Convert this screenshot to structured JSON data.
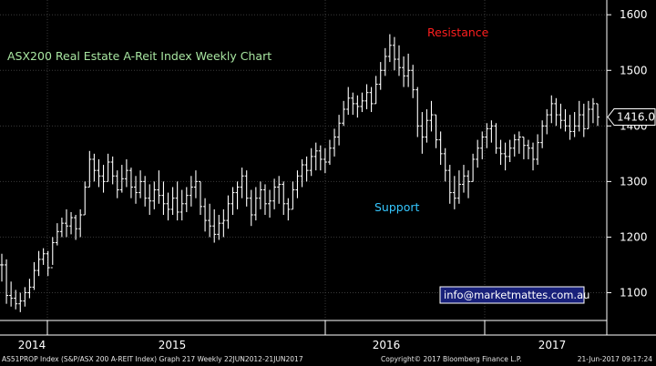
{
  "colors": {
    "background": "#000000",
    "grid": "#3a3a3a",
    "bars": "#ffffff",
    "title": "#a8e6a1",
    "resistance": "#ff1e1e",
    "support": "#35c7ff",
    "last_price_box_border": "#ffffff",
    "email_box_bg": "#18207a"
  },
  "chart_data": {
    "type": "ohlc",
    "title": "ASX200 Real Estate A-Reit Index Weekly Chart",
    "annotations": {
      "resistance": "Resistance",
      "support": "Support",
      "email": "info@marketmattes.com.au"
    },
    "last_price_label": "1416.0",
    "last_price": 1416.0,
    "ylim": [
      1050,
      1620
    ],
    "yticks": [
      1100,
      1200,
      1300,
      1400,
      1500,
      1600
    ],
    "xlabels": [
      "2014",
      "2015",
      "2016",
      "2017"
    ],
    "x_range": [
      "2014-01-20",
      "2017-06-21"
    ],
    "grid": true,
    "bars": [
      {
        "h": 1170,
        "l": 1120,
        "c": 1150
      },
      {
        "h": 1160,
        "l": 1080,
        "c": 1095
      },
      {
        "h": 1120,
        "l": 1075,
        "c": 1090
      },
      {
        "h": 1105,
        "l": 1070,
        "c": 1080
      },
      {
        "h": 1100,
        "l": 1065,
        "c": 1085
      },
      {
        "h": 1110,
        "l": 1075,
        "c": 1100
      },
      {
        "h": 1125,
        "l": 1090,
        "c": 1110
      },
      {
        "h": 1155,
        "l": 1105,
        "c": 1140
      },
      {
        "h": 1175,
        "l": 1130,
        "c": 1160
      },
      {
        "h": 1180,
        "l": 1150,
        "c": 1170
      },
      {
        "h": 1175,
        "l": 1130,
        "c": 1145
      },
      {
        "h": 1200,
        "l": 1150,
        "c": 1190
      },
      {
        "h": 1225,
        "l": 1185,
        "c": 1210
      },
      {
        "h": 1235,
        "l": 1200,
        "c": 1225
      },
      {
        "h": 1250,
        "l": 1200,
        "c": 1220
      },
      {
        "h": 1245,
        "l": 1205,
        "c": 1235
      },
      {
        "h": 1240,
        "l": 1195,
        "c": 1215
      },
      {
        "h": 1250,
        "l": 1200,
        "c": 1240
      },
      {
        "h": 1300,
        "l": 1240,
        "c": 1290
      },
      {
        "h": 1355,
        "l": 1290,
        "c": 1340
      },
      {
        "h": 1350,
        "l": 1300,
        "c": 1320
      },
      {
        "h": 1340,
        "l": 1290,
        "c": 1310
      },
      {
        "h": 1330,
        "l": 1280,
        "c": 1300
      },
      {
        "h": 1350,
        "l": 1300,
        "c": 1335
      },
      {
        "h": 1345,
        "l": 1295,
        "c": 1310
      },
      {
        "h": 1320,
        "l": 1270,
        "c": 1285
      },
      {
        "h": 1330,
        "l": 1280,
        "c": 1305
      },
      {
        "h": 1340,
        "l": 1290,
        "c": 1320
      },
      {
        "h": 1325,
        "l": 1270,
        "c": 1290
      },
      {
        "h": 1310,
        "l": 1260,
        "c": 1280
      },
      {
        "h": 1320,
        "l": 1270,
        "c": 1300
      },
      {
        "h": 1310,
        "l": 1255,
        "c": 1270
      },
      {
        "h": 1295,
        "l": 1240,
        "c": 1265
      },
      {
        "h": 1300,
        "l": 1250,
        "c": 1285
      },
      {
        "h": 1320,
        "l": 1260,
        "c": 1275
      },
      {
        "h": 1300,
        "l": 1240,
        "c": 1260
      },
      {
        "h": 1280,
        "l": 1230,
        "c": 1250
      },
      {
        "h": 1290,
        "l": 1240,
        "c": 1270
      },
      {
        "h": 1300,
        "l": 1230,
        "c": 1245
      },
      {
        "h": 1285,
        "l": 1230,
        "c": 1260
      },
      {
        "h": 1290,
        "l": 1245,
        "c": 1275
      },
      {
        "h": 1310,
        "l": 1255,
        "c": 1290
      },
      {
        "h": 1320,
        "l": 1270,
        "c": 1300
      },
      {
        "h": 1300,
        "l": 1240,
        "c": 1255
      },
      {
        "h": 1270,
        "l": 1210,
        "c": 1230
      },
      {
        "h": 1260,
        "l": 1200,
        "c": 1220
      },
      {
        "h": 1250,
        "l": 1190,
        "c": 1205
      },
      {
        "h": 1240,
        "l": 1195,
        "c": 1225
      },
      {
        "h": 1250,
        "l": 1200,
        "c": 1230
      },
      {
        "h": 1275,
        "l": 1215,
        "c": 1260
      },
      {
        "h": 1290,
        "l": 1240,
        "c": 1280
      },
      {
        "h": 1300,
        "l": 1250,
        "c": 1290
      },
      {
        "h": 1325,
        "l": 1270,
        "c": 1310
      },
      {
        "h": 1320,
        "l": 1255,
        "c": 1270
      },
      {
        "h": 1285,
        "l": 1220,
        "c": 1240
      },
      {
        "h": 1290,
        "l": 1230,
        "c": 1270
      },
      {
        "h": 1300,
        "l": 1250,
        "c": 1285
      },
      {
        "h": 1295,
        "l": 1240,
        "c": 1260
      },
      {
        "h": 1285,
        "l": 1235,
        "c": 1265
      },
      {
        "h": 1305,
        "l": 1250,
        "c": 1290
      },
      {
        "h": 1310,
        "l": 1260,
        "c": 1295
      },
      {
        "h": 1300,
        "l": 1240,
        "c": 1260
      },
      {
        "h": 1270,
        "l": 1230,
        "c": 1250
      },
      {
        "h": 1300,
        "l": 1250,
        "c": 1285
      },
      {
        "h": 1320,
        "l": 1270,
        "c": 1310
      },
      {
        "h": 1340,
        "l": 1290,
        "c": 1330
      },
      {
        "h": 1345,
        "l": 1300,
        "c": 1320
      },
      {
        "h": 1360,
        "l": 1310,
        "c": 1345
      },
      {
        "h": 1370,
        "l": 1320,
        "c": 1355
      },
      {
        "h": 1365,
        "l": 1320,
        "c": 1340
      },
      {
        "h": 1360,
        "l": 1315,
        "c": 1335
      },
      {
        "h": 1375,
        "l": 1330,
        "c": 1360
      },
      {
        "h": 1395,
        "l": 1345,
        "c": 1380
      },
      {
        "h": 1420,
        "l": 1365,
        "c": 1405
      },
      {
        "h": 1445,
        "l": 1400,
        "c": 1430
      },
      {
        "h": 1470,
        "l": 1420,
        "c": 1450
      },
      {
        "h": 1460,
        "l": 1420,
        "c": 1440
      },
      {
        "h": 1455,
        "l": 1415,
        "c": 1435
      },
      {
        "h": 1460,
        "l": 1425,
        "c": 1445
      },
      {
        "h": 1475,
        "l": 1430,
        "c": 1460
      },
      {
        "h": 1470,
        "l": 1425,
        "c": 1440
      },
      {
        "h": 1490,
        "l": 1440,
        "c": 1475
      },
      {
        "h": 1515,
        "l": 1465,
        "c": 1500
      },
      {
        "h": 1540,
        "l": 1490,
        "c": 1525
      },
      {
        "h": 1565,
        "l": 1515,
        "c": 1545
      },
      {
        "h": 1560,
        "l": 1500,
        "c": 1520
      },
      {
        "h": 1545,
        "l": 1490,
        "c": 1505
      },
      {
        "h": 1525,
        "l": 1470,
        "c": 1490
      },
      {
        "h": 1530,
        "l": 1470,
        "c": 1500
      },
      {
        "h": 1510,
        "l": 1450,
        "c": 1465
      },
      {
        "h": 1470,
        "l": 1380,
        "c": 1400
      },
      {
        "h": 1425,
        "l": 1350,
        "c": 1380
      },
      {
        "h": 1430,
        "l": 1370,
        "c": 1410
      },
      {
        "h": 1445,
        "l": 1390,
        "c": 1420
      },
      {
        "h": 1420,
        "l": 1360,
        "c": 1375
      },
      {
        "h": 1390,
        "l": 1330,
        "c": 1350
      },
      {
        "h": 1360,
        "l": 1300,
        "c": 1320
      },
      {
        "h": 1330,
        "l": 1260,
        "c": 1280
      },
      {
        "h": 1310,
        "l": 1250,
        "c": 1270
      },
      {
        "h": 1320,
        "l": 1260,
        "c": 1295
      },
      {
        "h": 1330,
        "l": 1280,
        "c": 1310
      },
      {
        "h": 1320,
        "l": 1270,
        "c": 1300
      },
      {
        "h": 1350,
        "l": 1300,
        "c": 1340
      },
      {
        "h": 1375,
        "l": 1325,
        "c": 1360
      },
      {
        "h": 1390,
        "l": 1340,
        "c": 1380
      },
      {
        "h": 1405,
        "l": 1360,
        "c": 1395
      },
      {
        "h": 1410,
        "l": 1370,
        "c": 1400
      },
      {
        "h": 1405,
        "l": 1350,
        "c": 1360
      },
      {
        "h": 1375,
        "l": 1330,
        "c": 1350
      },
      {
        "h": 1370,
        "l": 1320,
        "c": 1345
      },
      {
        "h": 1375,
        "l": 1335,
        "c": 1360
      },
      {
        "h": 1385,
        "l": 1345,
        "c": 1375
      },
      {
        "h": 1390,
        "l": 1350,
        "c": 1380
      },
      {
        "h": 1380,
        "l": 1340,
        "c": 1365
      },
      {
        "h": 1375,
        "l": 1340,
        "c": 1360
      },
      {
        "h": 1370,
        "l": 1320,
        "c": 1340
      },
      {
        "h": 1385,
        "l": 1330,
        "c": 1370
      },
      {
        "h": 1410,
        "l": 1360,
        "c": 1400
      },
      {
        "h": 1430,
        "l": 1385,
        "c": 1420
      },
      {
        "h": 1455,
        "l": 1405,
        "c": 1440
      },
      {
        "h": 1450,
        "l": 1400,
        "c": 1420
      },
      {
        "h": 1440,
        "l": 1395,
        "c": 1410
      },
      {
        "h": 1430,
        "l": 1390,
        "c": 1400
      },
      {
        "h": 1420,
        "l": 1375,
        "c": 1390
      },
      {
        "h": 1425,
        "l": 1380,
        "c": 1400
      },
      {
        "h": 1445,
        "l": 1390,
        "c": 1420
      },
      {
        "h": 1440,
        "l": 1380,
        "c": 1395
      },
      {
        "h": 1445,
        "l": 1395,
        "c": 1430
      },
      {
        "h": 1450,
        "l": 1405,
        "c": 1440
      },
      {
        "h": 1440,
        "l": 1400,
        "c": 1416
      }
    ]
  },
  "footer": {
    "left": "AS51PROP Index (S&P/ASX 200 A-REIT Index) Graph 217  Weekly 22JUN2012-21JUN2017",
    "center": "Copyright© 2017 Bloomberg Finance L.P.",
    "right": "21-Jun-2017 09:17:24"
  }
}
